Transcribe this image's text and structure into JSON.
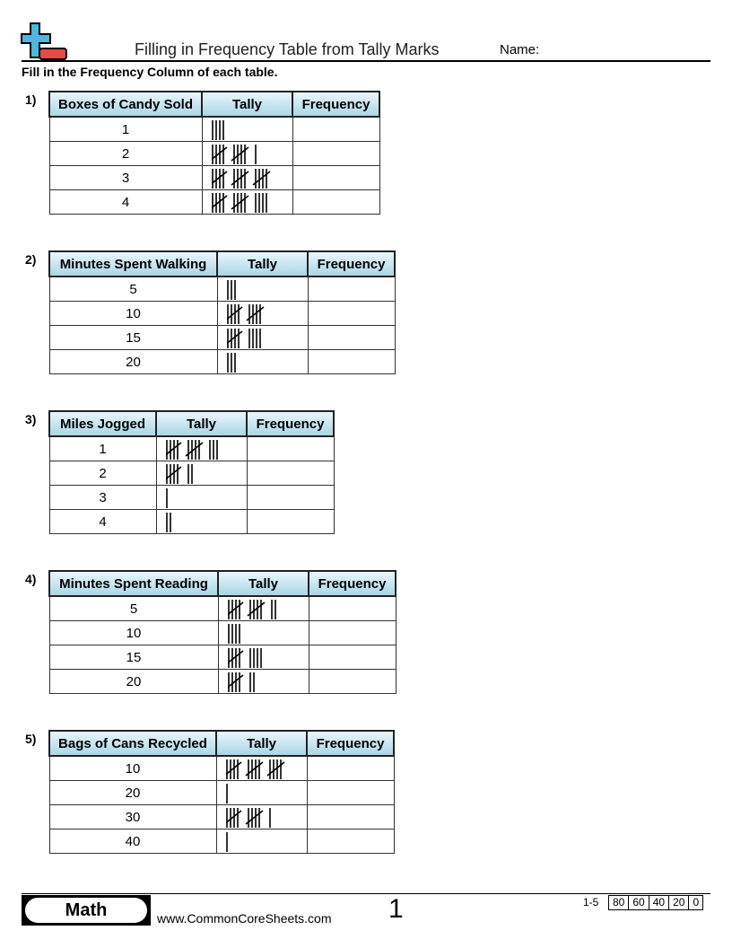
{
  "header": {
    "title": "Filling in Frequency Table from Tally Marks",
    "name_label": "Name:",
    "logo_icon": "plus-minus-icon"
  },
  "instructions": "Fill in the Frequency Column of each table.",
  "problems": [
    {
      "number": "1)",
      "columns": [
        "Boxes of Candy Sold",
        "Tally",
        "Frequency"
      ],
      "rows": [
        {
          "value": "1",
          "tally": 4
        },
        {
          "value": "2",
          "tally": 11
        },
        {
          "value": "3",
          "tally": 15
        },
        {
          "value": "4",
          "tally": 14
        }
      ]
    },
    {
      "number": "2)",
      "columns": [
        "Minutes Spent Walking",
        "Tally",
        "Frequency"
      ],
      "rows": [
        {
          "value": "5",
          "tally": 3
        },
        {
          "value": "10",
          "tally": 10
        },
        {
          "value": "15",
          "tally": 9
        },
        {
          "value": "20",
          "tally": 3
        }
      ]
    },
    {
      "number": "3)",
      "columns": [
        "Miles Jogged",
        "Tally",
        "Frequency"
      ],
      "rows": [
        {
          "value": "1",
          "tally": 13
        },
        {
          "value": "2",
          "tally": 7
        },
        {
          "value": "3",
          "tally": 1
        },
        {
          "value": "4",
          "tally": 2
        }
      ]
    },
    {
      "number": "4)",
      "columns": [
        "Minutes Spent Reading",
        "Tally",
        "Frequency"
      ],
      "rows": [
        {
          "value": "5",
          "tally": 12
        },
        {
          "value": "10",
          "tally": 4
        },
        {
          "value": "15",
          "tally": 9
        },
        {
          "value": "20",
          "tally": 7
        }
      ]
    },
    {
      "number": "5)",
      "columns": [
        "Bags of Cans Recycled",
        "Tally",
        "Frequency"
      ],
      "rows": [
        {
          "value": "10",
          "tally": 15
        },
        {
          "value": "20",
          "tally": 1
        },
        {
          "value": "30",
          "tally": 11
        },
        {
          "value": "40",
          "tally": 1
        }
      ]
    }
  ],
  "footer": {
    "subject": "Math",
    "site": "www.CommonCoreSheets.com",
    "page": "1",
    "range": "1-5",
    "scores": [
      "80",
      "60",
      "40",
      "20",
      "0"
    ]
  },
  "colors": {
    "header_gradient_top": "#eaf6fb",
    "header_gradient_bottom": "#a9d6e6",
    "logo_blue": "#4bb8dd",
    "logo_red": "#e84848"
  }
}
